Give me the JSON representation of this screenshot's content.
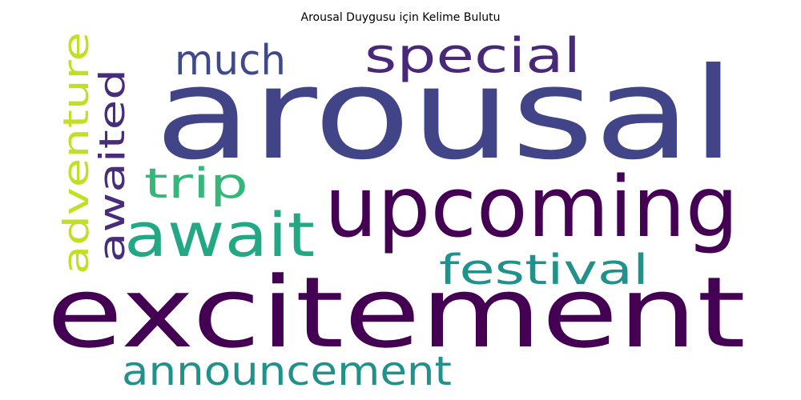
{
  "title": "Arousal Duygusu için Kelime Bulutu",
  "words": [
    {
      "text": "arousal",
      "color": "#414487"
    },
    {
      "text": "excitement",
      "color": "#440154"
    },
    {
      "text": "upcoming",
      "color": "#440154"
    },
    {
      "text": "special",
      "color": "#482878"
    },
    {
      "text": "much",
      "color": "#3E4A89"
    },
    {
      "text": "await",
      "color": "#22A884"
    },
    {
      "text": "trip",
      "color": "#35B779"
    },
    {
      "text": "festival",
      "color": "#21918C"
    },
    {
      "text": "announcement",
      "color": "#21918C"
    },
    {
      "text": "adventure",
      "color": "#C2DF23"
    },
    {
      "text": "awaited",
      "color": "#472D7B"
    }
  ]
}
